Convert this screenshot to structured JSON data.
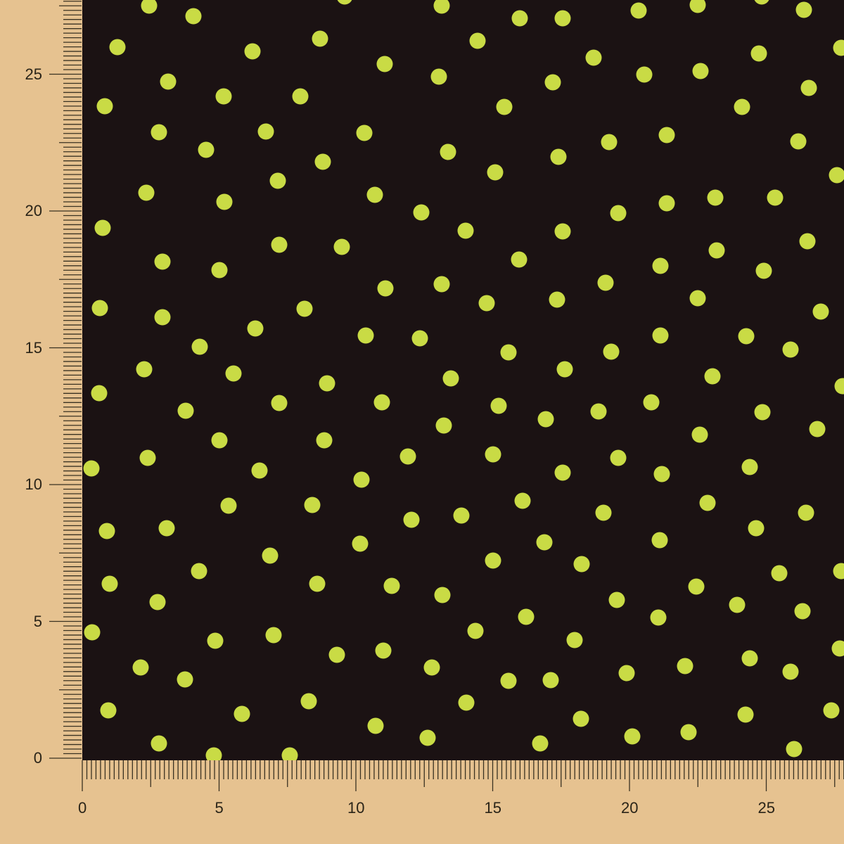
{
  "ruler": {
    "x_labels": [
      "0",
      "5",
      "10",
      "15",
      "20",
      "25"
    ],
    "y_labels": [
      "0",
      "5",
      "10",
      "15",
      "20",
      "25"
    ]
  },
  "colors": {
    "background": "#e6c290",
    "fabric": "#1b1213",
    "dot": "#c9db45",
    "ticks": "#3a3222"
  }
}
